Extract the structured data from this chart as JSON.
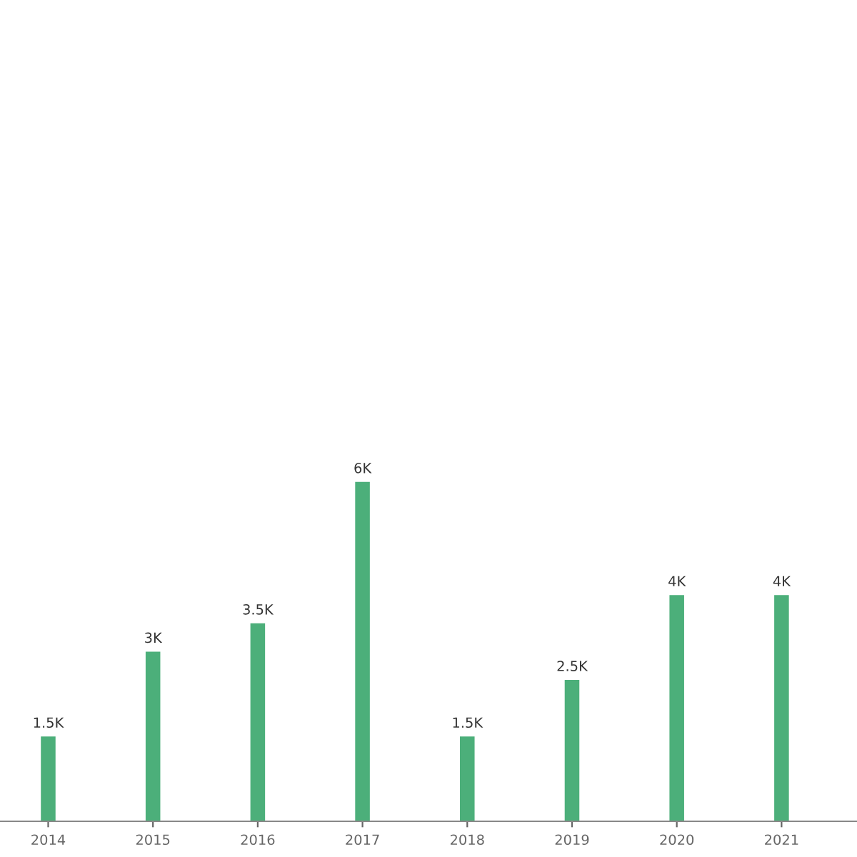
{
  "chart_data": {
    "type": "bar",
    "categories": [
      "2014",
      "2015",
      "2016",
      "2017",
      "2018",
      "2019",
      "2020",
      "2021"
    ],
    "values": [
      1500,
      3000,
      3500,
      6000,
      1500,
      2500,
      4000,
      4000
    ],
    "value_labels": [
      "1.5K",
      "3K",
      "3.5K",
      "6K",
      "1.5K",
      "2.5K",
      "4K",
      "4K"
    ],
    "color": "#4caf7a",
    "grid": false,
    "legend": false
  }
}
